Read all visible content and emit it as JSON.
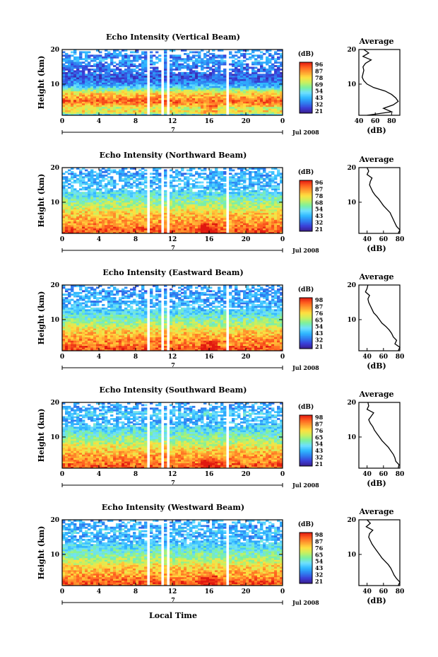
{
  "colors": {
    "colorbar": [
      "#3a1d8c",
      "#3a3fd8",
      "#2f7ff0",
      "#2fb8ff",
      "#6fe0ff",
      "#7af0a0",
      "#c8f060",
      "#ffe040",
      "#ffa030",
      "#ff6020",
      "#e01810"
    ]
  },
  "chart_data": [
    {
      "type": "heatmap",
      "title": "Echo Intensity (Vertical Beam)",
      "ylabel": "Height (km)",
      "xlabel": "",
      "ylim": [
        1,
        20
      ],
      "xlim": [
        0,
        24
      ],
      "x_ticks": [
        "0",
        "4",
        "8",
        "12",
        "16",
        "20",
        "0"
      ],
      "y_ticks": [
        "10",
        "20"
      ],
      "date_label": "Jul 2008",
      "date_day": "7",
      "colorbar_label": "(dB)",
      "colorbar_ticks": [
        "96",
        "87",
        "78",
        "69",
        "54",
        "43",
        "32",
        "21"
      ],
      "avg_title": "Average",
      "avg_xlabel": "(dB)",
      "avg_xticks": [
        "40",
        "60",
        "80"
      ],
      "avg_yticks": [
        "10",
        "20"
      ],
      "avg_xlim": [
        40,
        90
      ],
      "avg_profile": {
        "height": [
          1,
          2,
          3,
          4,
          5,
          6,
          7,
          8,
          9,
          10,
          11,
          12,
          13,
          14,
          15,
          16,
          17,
          18,
          19,
          20
        ],
        "db": [
          50,
          80,
          70,
          82,
          88,
          85,
          80,
          72,
          58,
          50,
          46,
          44,
          45,
          46,
          45,
          48,
          55,
          45,
          52,
          46
        ]
      }
    },
    {
      "type": "heatmap",
      "title": "Echo Intensity (Northward Beam)",
      "ylabel": "Height (km)",
      "xlabel": "",
      "ylim": [
        1,
        20
      ],
      "xlim": [
        0,
        24
      ],
      "x_ticks": [
        "0",
        "4",
        "8",
        "12",
        "16",
        "20",
        "0"
      ],
      "y_ticks": [
        "10",
        "20"
      ],
      "date_label": "Jul 2008",
      "date_day": "7",
      "colorbar_label": "(dB)",
      "colorbar_ticks": [
        "96",
        "87",
        "78",
        "68",
        "54",
        "43",
        "32",
        "21"
      ],
      "avg_title": "Average",
      "avg_xlabel": "(dB)",
      "avg_xticks": [
        "40",
        "60",
        "80"
      ],
      "avg_yticks": [
        "10",
        "20"
      ],
      "avg_xlim": [
        30,
        80
      ],
      "avg_profile": {
        "height": [
          1,
          2,
          3,
          4,
          5,
          6,
          7,
          8,
          9,
          10,
          11,
          12,
          13,
          14,
          15,
          16,
          17,
          18,
          19,
          20
        ],
        "db": [
          78,
          80,
          76,
          74,
          72,
          70,
          68,
          64,
          60,
          57,
          54,
          50,
          47,
          45,
          43,
          44,
          46,
          40,
          42,
          40
        ]
      }
    },
    {
      "type": "heatmap",
      "title": "Echo Intensity (Eastward Beam)",
      "ylabel": "Height (km)",
      "xlabel": "",
      "ylim": [
        1,
        20
      ],
      "xlim": [
        0,
        24
      ],
      "x_ticks": [
        "0",
        "4",
        "8",
        "12",
        "16",
        "20",
        "0"
      ],
      "y_ticks": [
        "10",
        "20"
      ],
      "date_label": "Jul 2008",
      "date_day": "7",
      "colorbar_label": "(dB)",
      "colorbar_ticks": [
        "98",
        "87",
        "76",
        "65",
        "54",
        "43",
        "32",
        "21"
      ],
      "avg_title": "Average",
      "avg_xlabel": "(dB)",
      "avg_xticks": [
        "40",
        "60",
        "80"
      ],
      "avg_yticks": [
        "10",
        "20"
      ],
      "avg_xlim": [
        30,
        80
      ],
      "avg_profile": {
        "height": [
          1,
          2,
          3,
          4,
          5,
          6,
          7,
          8,
          9,
          10,
          11,
          12,
          13,
          14,
          15,
          16,
          17,
          18,
          19,
          20
        ],
        "db": [
          78,
          80,
          74,
          76,
          72,
          70,
          67,
          63,
          58,
          55,
          52,
          48,
          46,
          44,
          42,
          41,
          43,
          38,
          40,
          41
        ]
      }
    },
    {
      "type": "heatmap",
      "title": "Echo Intensity (Southward Beam)",
      "ylabel": "Height (km)",
      "xlabel": "",
      "ylim": [
        1,
        20
      ],
      "xlim": [
        0,
        24
      ],
      "x_ticks": [
        "0",
        "4",
        "8",
        "12",
        "16",
        "20",
        "0"
      ],
      "y_ticks": [
        "10",
        "20"
      ],
      "date_label": "Jul 2008",
      "date_day": "7",
      "colorbar_label": "(dB)",
      "colorbar_ticks": [
        "98",
        "87",
        "76",
        "65",
        "54",
        "43",
        "32",
        "21"
      ],
      "avg_title": "Average",
      "avg_xlabel": "(dB)",
      "avg_xticks": [
        "40",
        "60",
        "80"
      ],
      "avg_yticks": [
        "10",
        "20"
      ],
      "avg_xlim": [
        30,
        80
      ],
      "avg_profile": {
        "height": [
          1,
          2,
          3,
          4,
          5,
          6,
          7,
          8,
          9,
          10,
          11,
          12,
          13,
          14,
          15,
          16,
          17,
          18,
          19,
          20
        ],
        "db": [
          78,
          79,
          75,
          74,
          72,
          69,
          66,
          62,
          58,
          55,
          52,
          49,
          47,
          44,
          42,
          45,
          48,
          40,
          42,
          41
        ]
      }
    },
    {
      "type": "heatmap",
      "title": "Echo Intensity (Westward Beam)",
      "ylabel": "Height (km)",
      "xlabel": "Local Time",
      "ylim": [
        1,
        20
      ],
      "xlim": [
        0,
        24
      ],
      "x_ticks": [
        "0",
        "4",
        "8",
        "12",
        "16",
        "20",
        "0"
      ],
      "y_ticks": [
        "10",
        "20"
      ],
      "date_label": "Jul 2008",
      "date_day": "7",
      "colorbar_label": "(dB)",
      "colorbar_ticks": [
        "98",
        "87",
        "76",
        "65",
        "54",
        "43",
        "32",
        "21"
      ],
      "avg_title": "Average",
      "avg_xlabel": "(dB)",
      "avg_xticks": [
        "40",
        "60",
        "80"
      ],
      "avg_yticks": [
        "10",
        "20"
      ],
      "avg_xlim": [
        30,
        80
      ],
      "avg_profile": {
        "height": [
          1,
          2,
          3,
          4,
          5,
          6,
          7,
          8,
          9,
          10,
          11,
          12,
          13,
          14,
          15,
          16,
          17,
          18,
          19,
          20
        ],
        "db": [
          78,
          80,
          76,
          73,
          71,
          69,
          66,
          62,
          58,
          55,
          52,
          49,
          46,
          44,
          42,
          43,
          47,
          39,
          44,
          40
        ]
      }
    }
  ]
}
